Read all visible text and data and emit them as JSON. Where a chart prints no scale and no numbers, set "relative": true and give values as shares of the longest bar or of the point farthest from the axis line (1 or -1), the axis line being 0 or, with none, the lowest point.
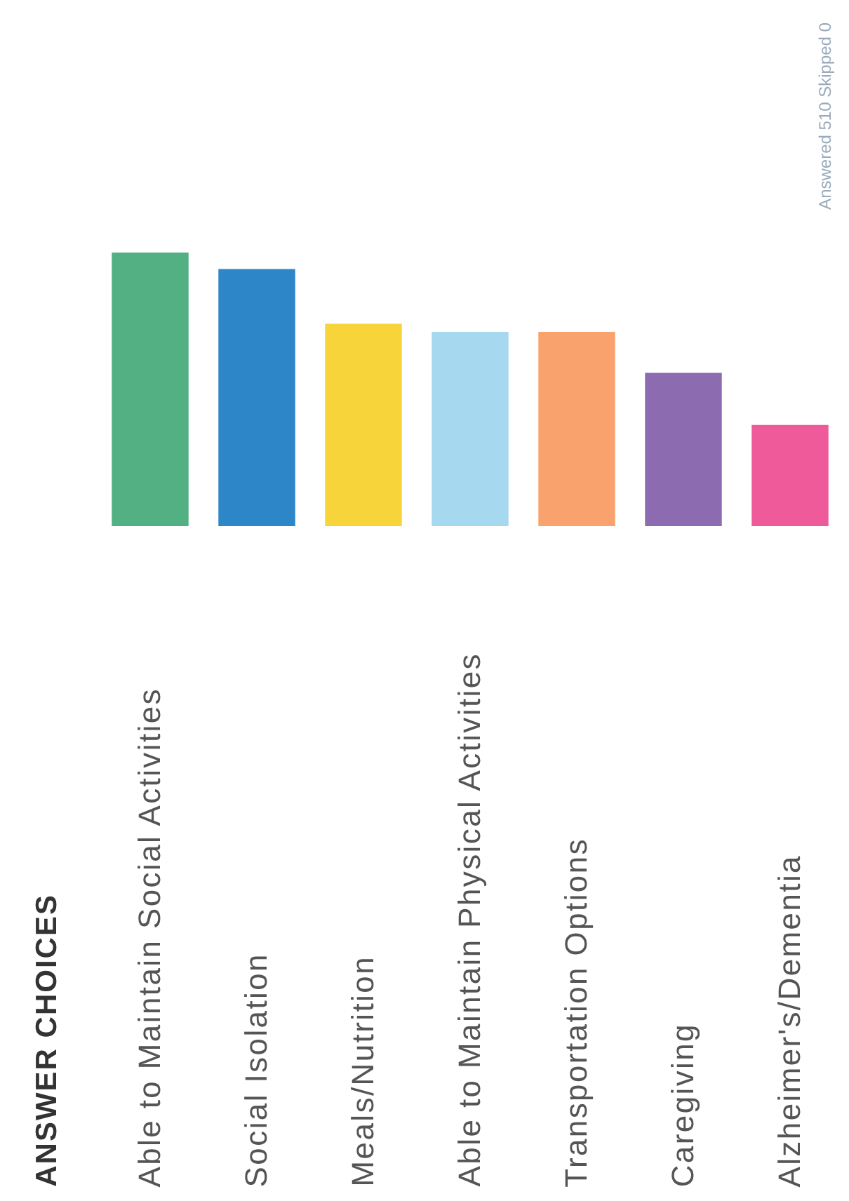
{
  "chart_data": {
    "type": "bar",
    "relative": true,
    "categories": [
      "Able to Maintain Social Activities",
      "Social Isolation",
      "Meals/Nutrition",
      "Able to Maintain Physical Activities",
      "Transportation Options",
      "Caregiving",
      "Alzheimer's/Dementia"
    ],
    "values": [
      1,
      0.94,
      0.74,
      0.71,
      0.71,
      0.56,
      0.37
    ],
    "colors": [
      "#52b083",
      "#2d86c8",
      "#f7d43a",
      "#a6d8f0",
      "#f9a26e",
      "#8c6bb1",
      "#ee5a9a"
    ],
    "annotations": [
      "ANSWER CHOICES",
      "Answered 510    Skipped 0"
    ]
  }
}
